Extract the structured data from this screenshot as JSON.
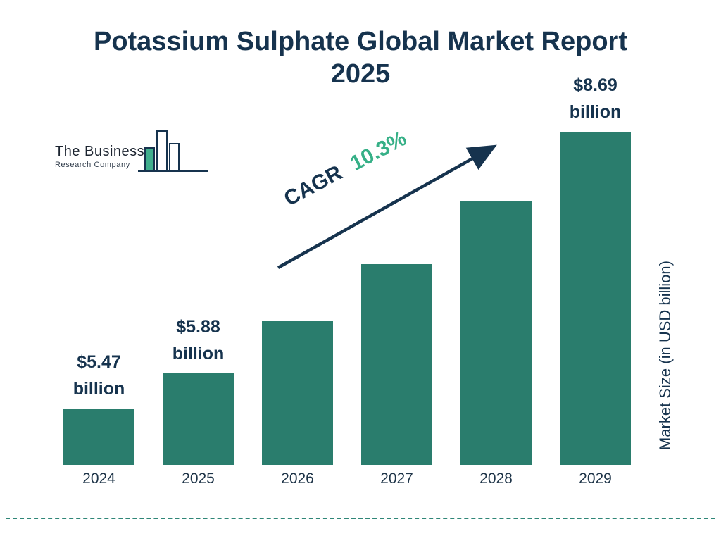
{
  "title": {
    "line1": "Potassium Sulphate Global Market Report",
    "line2": "2025"
  },
  "logo": {
    "line1": "The Business",
    "line2": "Research Company"
  },
  "cagr": {
    "label": "CAGR",
    "value": "10.3%"
  },
  "colors": {
    "bar": "#2a7d6d",
    "navy": "#16334e",
    "green": "#36b087",
    "dashed_line": "#2f8677"
  },
  "chart_data": {
    "type": "bar",
    "title": "Potassium Sulphate Global Market Report 2025",
    "categories": [
      "2024",
      "2025",
      "2026",
      "2027",
      "2028",
      "2029"
    ],
    "values": [
      5.47,
      5.88,
      6.49,
      7.15,
      7.89,
      8.69
    ],
    "value_unit": "USD billion",
    "value_labels": [
      [
        "$5.47",
        "billion"
      ],
      [
        "$5.88",
        "billion"
      ],
      null,
      null,
      null,
      [
        "$8.69",
        "billion"
      ]
    ],
    "cagr_annotation": "CAGR 10.3%",
    "xlabel": "",
    "ylabel": "Market Size (in USD billion)",
    "legend": false,
    "grid": false,
    "bar_color": "#2a7d6d"
  }
}
